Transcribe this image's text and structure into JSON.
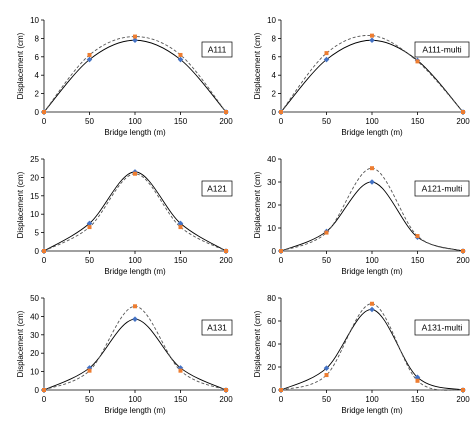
{
  "chart_data": [
    {
      "type": "line",
      "label": "A111",
      "xlabel": "Bridge length (m)",
      "ylabel": "Displacement (cm)",
      "xlim": [
        0,
        200
      ],
      "ylim": [
        0,
        10
      ],
      "xticks": [
        0,
        50,
        100,
        150,
        200
      ],
      "yticks": [
        0,
        2,
        4,
        6,
        8,
        10
      ],
      "grid": false,
      "series": [
        {
          "style": "solid",
          "color": "#000000",
          "marker": "diamond",
          "marker_color": "#4472c4",
          "x": [
            0,
            50,
            100,
            150,
            200
          ],
          "values": [
            0,
            5.7,
            7.8,
            5.7,
            0
          ]
        },
        {
          "style": "dashed",
          "color": "#555555",
          "marker": "square",
          "marker_color": "#ed7d31",
          "x": [
            0,
            50,
            100,
            150,
            200
          ],
          "values": [
            0,
            6.2,
            8.2,
            6.2,
            0
          ]
        }
      ]
    },
    {
      "type": "line",
      "label": "A111-multi",
      "xlabel": "Bridge length (m)",
      "ylabel": "Displacement (cm)",
      "xlim": [
        0,
        200
      ],
      "ylim": [
        0,
        10
      ],
      "xticks": [
        0,
        50,
        100,
        150,
        200
      ],
      "yticks": [
        0,
        2,
        4,
        6,
        8,
        10
      ],
      "grid": false,
      "series": [
        {
          "style": "solid",
          "color": "#000000",
          "marker": "diamond",
          "marker_color": "#4472c4",
          "x": [
            0,
            50,
            100,
            150,
            200
          ],
          "values": [
            0,
            5.7,
            7.8,
            5.6,
            0
          ]
        },
        {
          "style": "dashed",
          "color": "#555555",
          "marker": "square",
          "marker_color": "#ed7d31",
          "x": [
            0,
            50,
            100,
            150,
            200
          ],
          "values": [
            0,
            6.4,
            8.3,
            5.5,
            0
          ]
        }
      ]
    },
    {
      "type": "line",
      "label": "A121",
      "xlabel": "Bridge length (m)",
      "ylabel": "Displacement (cm)",
      "xlim": [
        0,
        200
      ],
      "ylim": [
        0,
        25
      ],
      "xticks": [
        0,
        50,
        100,
        150,
        200
      ],
      "yticks": [
        0,
        5,
        10,
        15,
        20,
        25
      ],
      "grid": false,
      "series": [
        {
          "style": "solid",
          "color": "#000000",
          "marker": "diamond",
          "marker_color": "#4472c4",
          "x": [
            0,
            50,
            100,
            150,
            200
          ],
          "values": [
            0,
            7.5,
            21.5,
            7.5,
            0
          ]
        },
        {
          "style": "dashed",
          "color": "#555555",
          "marker": "square",
          "marker_color": "#ed7d31",
          "x": [
            0,
            50,
            100,
            150,
            200
          ],
          "values": [
            0,
            6.5,
            21,
            6.5,
            0
          ]
        }
      ]
    },
    {
      "type": "line",
      "label": "A121-multi",
      "xlabel": "Bridge length (m)",
      "ylabel": "Displacement (cm)",
      "xlim": [
        0,
        200
      ],
      "ylim": [
        0,
        40
      ],
      "xticks": [
        0,
        50,
        100,
        150,
        200
      ],
      "yticks": [
        0,
        10,
        20,
        30,
        40
      ],
      "grid": false,
      "series": [
        {
          "style": "solid",
          "color": "#000000",
          "marker": "diamond",
          "marker_color": "#4472c4",
          "x": [
            0,
            50,
            100,
            150,
            200
          ],
          "values": [
            0,
            8.5,
            30,
            6,
            0
          ]
        },
        {
          "style": "dashed",
          "color": "#555555",
          "marker": "square",
          "marker_color": "#ed7d31",
          "x": [
            0,
            50,
            100,
            150,
            200
          ],
          "values": [
            0,
            8,
            36,
            6.5,
            0
          ]
        }
      ]
    },
    {
      "type": "line",
      "label": "A131",
      "xlabel": "Bridge length (m)",
      "ylabel": "Displacement (cm)",
      "xlim": [
        0,
        200
      ],
      "ylim": [
        0,
        50
      ],
      "xticks": [
        0,
        50,
        100,
        150,
        200
      ],
      "yticks": [
        0,
        10,
        20,
        30,
        40,
        50
      ],
      "grid": false,
      "series": [
        {
          "style": "solid",
          "color": "#000000",
          "marker": "diamond",
          "marker_color": "#4472c4",
          "x": [
            0,
            50,
            100,
            150,
            200
          ],
          "values": [
            0,
            12,
            38.5,
            12,
            0
          ]
        },
        {
          "style": "dashed",
          "color": "#555555",
          "marker": "square",
          "marker_color": "#ed7d31",
          "x": [
            0,
            50,
            100,
            150,
            200
          ],
          "values": [
            0,
            10.5,
            45.5,
            10.5,
            0
          ]
        }
      ]
    },
    {
      "type": "line",
      "label": "A131-multi",
      "xlabel": "Bridge length (m)",
      "ylabel": "Displacement (cm)",
      "xlim": [
        0,
        200
      ],
      "ylim": [
        0,
        80
      ],
      "xticks": [
        0,
        50,
        100,
        150,
        200
      ],
      "yticks": [
        0,
        20,
        40,
        60,
        80
      ],
      "grid": false,
      "series": [
        {
          "style": "solid",
          "color": "#000000",
          "marker": "diamond",
          "marker_color": "#4472c4",
          "x": [
            0,
            50,
            100,
            150,
            200
          ],
          "values": [
            0,
            19,
            70,
            11,
            0
          ]
        },
        {
          "style": "dashed",
          "color": "#555555",
          "marker": "square",
          "marker_color": "#ed7d31",
          "x": [
            0,
            50,
            100,
            150,
            200
          ],
          "values": [
            0,
            13,
            75,
            8,
            0
          ]
        }
      ]
    }
  ]
}
